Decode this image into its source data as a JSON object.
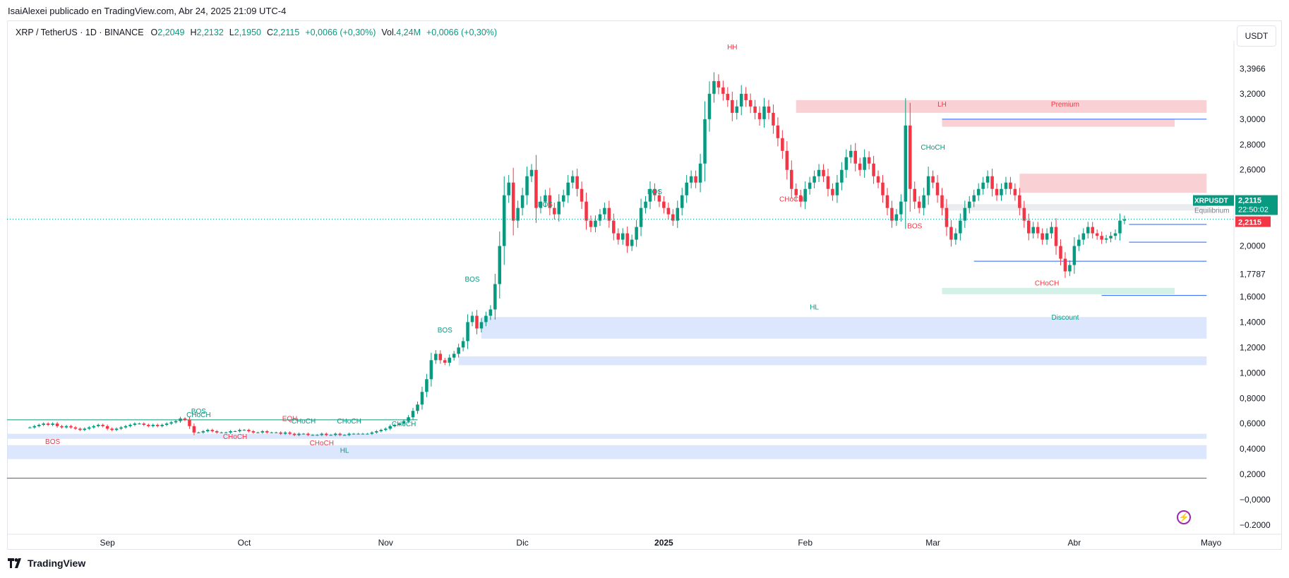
{
  "header": {
    "published": "IsaiAlexei publicado en TradingView.com, Abr 24, 2025 21:09 UTC-4"
  },
  "legend": {
    "symbol": "XRP / TetherUS · 1D · BINANCE",
    "open_key": "O",
    "open": "2,2049",
    "high_key": "H",
    "high": "2,2132",
    "low_key": "L",
    "low": "2,1950",
    "close_key": "C",
    "close": "2,2115",
    "change": "+0,0066 (+0,30%)",
    "vol_key": "Vol.",
    "vol": "4,24M",
    "vol_change": "+0,0066 (+0,30%)"
  },
  "currency_button": "USDT",
  "brand": "TradingView",
  "colors": {
    "up": "#089981",
    "down": "#f23645",
    "accent": "#2962ff",
    "premium": "#f8c9cc",
    "discount": "#cdeee3",
    "ob": "#d6e2fb"
  },
  "icons": {
    "brand": "tradingview-logo-icon",
    "signal": "lightning-icon"
  },
  "chart_data": {
    "type": "candlestick",
    "symbol": "XRPUSDT",
    "ylim": [
      -0.2,
      3.6
    ],
    "y_ticks": [
      "3,3966",
      "3,2000",
      "3,0000",
      "2,8000",
      "2,6000",
      "2,0000",
      "1,7787",
      "1,6000",
      "1,4000",
      "1,2000",
      "1,0000",
      "0,8000",
      "0,6000",
      "0,4000",
      "0,2000",
      "−0,0000",
      "−0.2000"
    ],
    "x_ticks": [
      "Sep",
      "Oct",
      "Nov",
      "Dic",
      "2025",
      "Feb",
      "Mar",
      "Abr",
      "Mayo"
    ],
    "price_tags": {
      "symbol": "XRPUSDT",
      "price": "2,2115",
      "countdown": "22:50:02",
      "equilibrium": "Equilibrium",
      "red_price": "2,2115"
    },
    "closes_segments": [
      {
        "start": "2024-08-15",
        "end": "2024-11-05",
        "values": [
          0.57,
          0.58,
          0.59,
          0.6,
          0.59,
          0.6,
          0.58,
          0.57,
          0.58,
          0.57,
          0.56,
          0.55,
          0.56,
          0.57,
          0.58,
          0.59,
          0.58,
          0.56,
          0.55,
          0.56,
          0.57,
          0.58,
          0.59,
          0.6,
          0.6,
          0.59,
          0.58,
          0.59,
          0.58,
          0.59,
          0.6,
          0.61,
          0.62,
          0.64,
          0.63,
          0.58,
          0.53,
          0.53,
          0.54,
          0.55,
          0.54,
          0.53,
          0.53,
          0.53,
          0.54,
          0.54,
          0.55,
          0.55,
          0.54,
          0.53,
          0.53,
          0.54,
          0.53,
          0.53,
          0.53,
          0.52,
          0.53,
          0.52,
          0.51,
          0.52,
          0.52,
          0.51,
          0.51,
          0.51,
          0.52,
          0.51,
          0.51,
          0.52,
          0.51,
          0.51,
          0.52,
          0.52,
          0.52,
          0.52,
          0.52,
          0.53,
          0.54,
          0.55,
          0.56,
          0.58,
          0.59,
          0.6,
          0.62
        ]
      },
      {
        "start": "2024-11-06",
        "end": "2025-04-24",
        "values": [
          0.65,
          0.7,
          0.75,
          0.85,
          0.95,
          1.1,
          1.15,
          1.1,
          1.08,
          1.12,
          1.15,
          1.2,
          1.25,
          1.4,
          1.45,
          1.35,
          1.4,
          1.45,
          1.5,
          1.7,
          2.0,
          2.4,
          2.5,
          2.2,
          2.3,
          2.4,
          2.55,
          2.6,
          2.3,
          2.35,
          2.4,
          2.3,
          2.25,
          2.35,
          2.4,
          2.5,
          2.55,
          2.45,
          2.35,
          2.2,
          2.15,
          2.2,
          2.25,
          2.3,
          2.2,
          2.1,
          2.05,
          2.1,
          2.0,
          2.05,
          2.15,
          2.3,
          2.35,
          2.45,
          2.4,
          2.35,
          2.3,
          2.25,
          2.2,
          2.3,
          2.4,
          2.5,
          2.55,
          2.5,
          2.65,
          3.0,
          3.2,
          3.3,
          3.25,
          3.2,
          3.15,
          3.05,
          3.1,
          3.2,
          3.15,
          3.1,
          3.05,
          3.0,
          3.1,
          3.05,
          2.95,
          2.85,
          2.75,
          2.6,
          2.45,
          2.4,
          2.35,
          2.45,
          2.5,
          2.55,
          2.6,
          2.55,
          2.45,
          2.4,
          2.5,
          2.6,
          2.7,
          2.75,
          2.65,
          2.6,
          2.7,
          2.65,
          2.55,
          2.5,
          2.4,
          2.3,
          2.2,
          2.25,
          2.35,
          2.95,
          2.45,
          2.35,
          2.3,
          2.4,
          2.55,
          2.5,
          2.4,
          2.3,
          2.15,
          2.05,
          2.1,
          2.2,
          2.3,
          2.35,
          2.4,
          2.45,
          2.5,
          2.55,
          2.45,
          2.4,
          2.45,
          2.5,
          2.45,
          2.4,
          2.3,
          2.2,
          2.1,
          2.15,
          2.1,
          2.05,
          2.1,
          2.15,
          2.0,
          1.9,
          1.8,
          1.85,
          2.0,
          2.05,
          2.1,
          2.15,
          2.1,
          2.08,
          2.05,
          2.06,
          2.08,
          2.1,
          2.2,
          2.21
        ]
      }
    ],
    "smc_labels": [
      {
        "text": "HH",
        "date": "2025-01-16",
        "price": 3.55,
        "color": "#f23645"
      },
      {
        "text": "LH",
        "date": "2025-03-03",
        "price": 3.1,
        "color": "#f23645"
      },
      {
        "text": "Premium",
        "date": "2025-03-30",
        "price": 3.1,
        "color": "#f23645"
      },
      {
        "text": "CHoCH",
        "date": "2025-03-01",
        "price": 2.76,
        "color": "#089981"
      },
      {
        "text": "CHoCH",
        "date": "2025-01-29",
        "price": 2.35,
        "color": "#f23645"
      },
      {
        "text": "BOS",
        "date": "2025-02-25",
        "price": 2.14,
        "color": "#f23645"
      },
      {
        "text": "HL",
        "date": "2025-02-03",
        "price": 1.5,
        "color": "#089981"
      },
      {
        "text": "CHoCH",
        "date": "2025-03-26",
        "price": 1.69,
        "color": "#f23645"
      },
      {
        "text": "Discount",
        "date": "2025-03-30",
        "price": 1.42,
        "color": "#089981"
      },
      {
        "text": "BOS",
        "date": "2024-12-06",
        "price": 2.31,
        "color": "#089981"
      },
      {
        "text": "BOS",
        "date": "2024-12-30",
        "price": 2.41,
        "color": "#089981"
      },
      {
        "text": "BOS",
        "date": "2024-11-20",
        "price": 1.72,
        "color": "#089981"
      },
      {
        "text": "BOS",
        "date": "2024-11-14",
        "price": 1.32,
        "color": "#089981"
      },
      {
        "text": "BOS",
        "date": "2024-09-21",
        "price": 0.68,
        "color": "#089981"
      },
      {
        "text": "CHoCH",
        "date": "2024-09-21",
        "price": 0.65,
        "color": "#089981"
      },
      {
        "text": "BOS",
        "date": "2024-08-20",
        "price": 0.44,
        "color": "#f23645"
      },
      {
        "text": "CHoCH",
        "date": "2024-09-29",
        "price": 0.48,
        "color": "#f23645"
      },
      {
        "text": "EQH",
        "date": "2024-10-11",
        "price": 0.62,
        "color": "#f23645"
      },
      {
        "text": "CHoCH",
        "date": "2024-10-14",
        "price": 0.6,
        "color": "#089981"
      },
      {
        "text": "CHoCH",
        "date": "2024-10-18",
        "price": 0.43,
        "color": "#f23645"
      },
      {
        "text": "HL",
        "date": "2024-10-23",
        "price": 0.37,
        "color": "#089981"
      },
      {
        "text": "CHoCH",
        "date": "2024-10-24",
        "price": 0.6,
        "color": "#089981"
      },
      {
        "text": "CHoCH",
        "date": "2024-11-05",
        "price": 0.58,
        "color": "#089981"
      }
    ],
    "zones": [
      {
        "kind": "premium",
        "from": "2025-01-30",
        "to": "2025-04-30",
        "low": 3.05,
        "high": 3.15
      },
      {
        "kind": "premium",
        "from": "2025-03-03",
        "to": "2025-04-23",
        "low": 2.94,
        "high": 3.0
      },
      {
        "kind": "premium",
        "from": "2025-03-20",
        "to": "2025-04-30",
        "low": 2.42,
        "high": 2.57
      },
      {
        "kind": "equilibrium",
        "from": "2025-03-03",
        "to": "2025-04-30",
        "low": 2.28,
        "high": 2.33
      },
      {
        "kind": "discount",
        "from": "2025-03-03",
        "to": "2025-04-23",
        "low": 1.62,
        "high": 1.67
      },
      {
        "kind": "ob",
        "from": "2024-11-22",
        "to": "2025-04-30",
        "low": 1.27,
        "high": 1.44
      },
      {
        "kind": "ob",
        "from": "2024-11-17",
        "to": "2025-04-30",
        "low": 1.06,
        "high": 1.13
      },
      {
        "kind": "ob",
        "from": "2024-08-10",
        "to": "2025-04-30",
        "low": 0.48,
        "high": 0.52
      },
      {
        "kind": "ob",
        "from": "2024-08-10",
        "to": "2025-04-30",
        "low": 0.32,
        "high": 0.43
      }
    ],
    "levels": [
      {
        "price": 3.0,
        "from": "2025-03-03",
        "to": "2025-04-30",
        "color": "#2962ff"
      },
      {
        "price": 1.88,
        "from": "2025-03-10",
        "to": "2025-04-30",
        "color": "#2962ff"
      },
      {
        "price": 1.61,
        "from": "2025-04-07",
        "to": "2025-04-30",
        "color": "#2962ff"
      },
      {
        "price": 2.03,
        "from": "2025-04-13",
        "to": "2025-04-30",
        "color": "#2962ff"
      },
      {
        "price": 2.17,
        "from": "2025-04-13",
        "to": "2025-04-30",
        "color": "#2962ff"
      },
      {
        "price": 0.63,
        "from": "2024-08-10",
        "to": "2024-11-08",
        "color": "#089981"
      },
      {
        "price": 0.17,
        "from": "2024-08-10",
        "to": "2025-04-30",
        "color": "#2962ff"
      }
    ]
  }
}
